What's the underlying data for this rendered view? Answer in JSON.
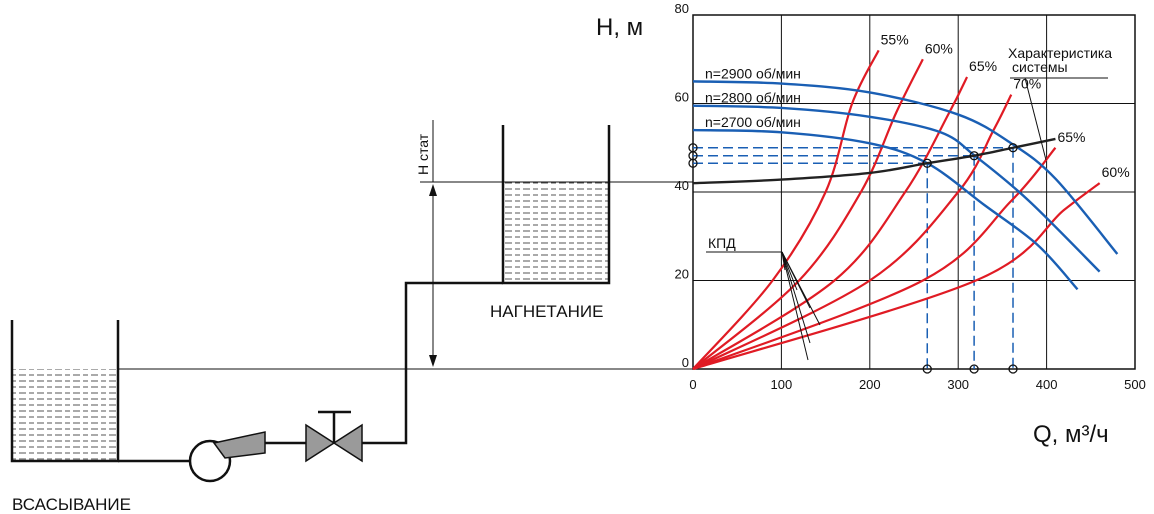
{
  "diagram": {
    "labels": {
      "suction": "ВСАСЫВАНИЕ",
      "discharge": "НАГНЕТАНИЕ",
      "h_stat": "Н стат"
    }
  },
  "chart_data": {
    "type": "line",
    "title": "",
    "ylabel": "Н, м",
    "xlabel": "Q, м³/ч",
    "xlim": [
      0,
      500
    ],
    "ylim": [
      0,
      80
    ],
    "x_ticks": [
      "0",
      "100",
      "200",
      "300",
      "400",
      "500"
    ],
    "y_ticks": [
      "0",
      "20",
      "40",
      "60",
      "80"
    ],
    "grid": true,
    "colors": {
      "pump": "#1a5fb4",
      "efficiency": "#e01b24",
      "system": "#222222",
      "dashed": "#1a5fb4"
    },
    "pump_curves": [
      {
        "name": "n=2900 об/мин",
        "points": [
          [
            0,
            65
          ],
          [
            100,
            64.5
          ],
          [
            200,
            62.5
          ],
          [
            300,
            57.5
          ],
          [
            360,
            51
          ],
          [
            410,
            43
          ],
          [
            480,
            26
          ]
        ]
      },
      {
        "name": "n=2800 об/мин",
        "points": [
          [
            0,
            59.5
          ],
          [
            100,
            59
          ],
          [
            200,
            57
          ],
          [
            280,
            53.5
          ],
          [
            320,
            48
          ],
          [
            380,
            38
          ],
          [
            460,
            22
          ]
        ]
      },
      {
        "name": "n=2700 об/мин",
        "points": [
          [
            0,
            54
          ],
          [
            100,
            53.5
          ],
          [
            200,
            51
          ],
          [
            265,
            46.5
          ],
          [
            330,
            37
          ],
          [
            390,
            28
          ],
          [
            435,
            18
          ]
        ]
      }
    ],
    "system_curve": {
      "label": "Характеристика системы",
      "points": [
        [
          0,
          42
        ],
        [
          100,
          42.8
        ],
        [
          200,
          44.3
        ],
        [
          265,
          46.5
        ],
        [
          318,
          48.2
        ],
        [
          362,
          50
        ],
        [
          410,
          52
        ]
      ]
    },
    "efficiency_label": "КПД",
    "efficiency_curves": [
      {
        "name": "55%",
        "points": [
          [
            0,
            0
          ],
          [
            90,
            20
          ],
          [
            150,
            40
          ],
          [
            180,
            60
          ],
          [
            210,
            72
          ]
        ]
      },
      {
        "name": "60%",
        "points": [
          [
            0,
            0
          ],
          [
            120,
            20
          ],
          [
            190,
            40
          ],
          [
            230,
            58
          ],
          [
            260,
            70
          ]
        ]
      },
      {
        "name": "65%",
        "points": [
          [
            0,
            0
          ],
          [
            160,
            20
          ],
          [
            240,
            40
          ],
          [
            290,
            58
          ],
          [
            310,
            66
          ]
        ]
      },
      {
        "name": "70%",
        "points": [
          [
            0,
            0
          ],
          [
            200,
            20
          ],
          [
            300,
            40
          ],
          [
            340,
            54
          ],
          [
            360,
            62
          ]
        ]
      },
      {
        "name": "65%",
        "points": [
          [
            0,
            0
          ],
          [
            260,
            20
          ],
          [
            360,
            38
          ],
          [
            410,
            50
          ]
        ]
      },
      {
        "name": "60%",
        "points": [
          [
            0,
            0
          ],
          [
            320,
            20
          ],
          [
            420,
            36
          ],
          [
            460,
            42
          ]
        ]
      }
    ],
    "operating_points": [
      {
        "x": 265,
        "y": 46.5
      },
      {
        "x": 318,
        "y": 48.2
      },
      {
        "x": 362,
        "y": 50
      }
    ]
  }
}
